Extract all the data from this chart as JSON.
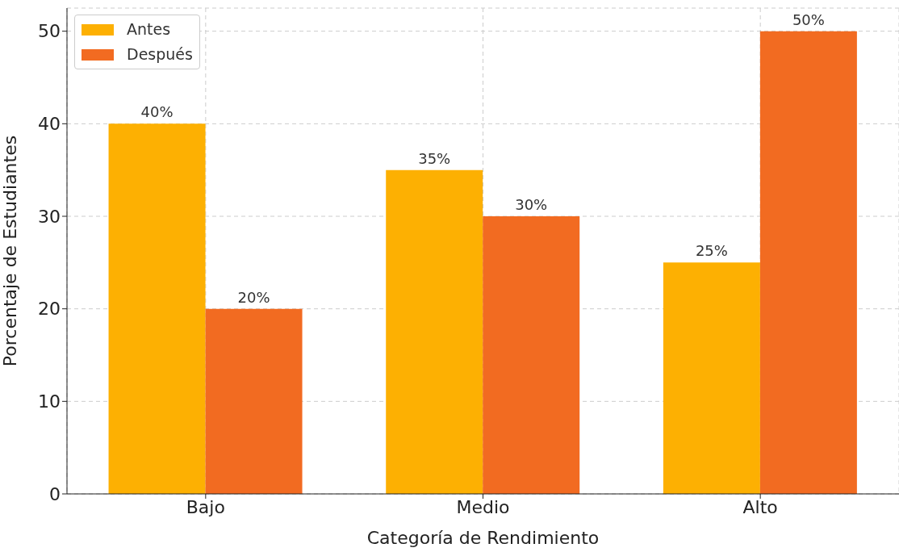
{
  "chart_data": {
    "type": "bar",
    "xlabel": "Categoría de Rendimiento",
    "ylabel": "Porcentaje de Estudiantes",
    "categories": [
      "Bajo",
      "Medio",
      "Alto"
    ],
    "series": [
      {
        "name": "Antes",
        "color": "#fdb002",
        "values": [
          40,
          35,
          25
        ],
        "value_labels": [
          "40%",
          "35%",
          "25%"
        ]
      },
      {
        "name": "Después",
        "color": "#f26b21",
        "values": [
          20,
          30,
          50
        ],
        "value_labels": [
          "20%",
          "30%",
          "50%"
        ]
      }
    ],
    "ylim": [
      0,
      52.5
    ],
    "yticks": [
      0,
      10,
      20,
      30,
      40,
      50
    ],
    "grid": true,
    "legend": "top left"
  }
}
